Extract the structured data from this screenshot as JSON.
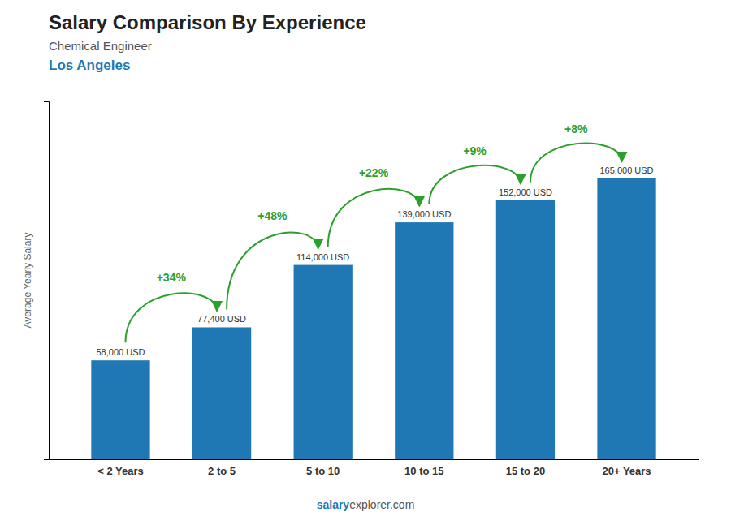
{
  "chart_data": {
    "type": "bar",
    "title": "Salary Comparison By Experience",
    "subtitle": "Chemical Engineer",
    "subtitle2": "Los Angeles",
    "ylabel": "Average Yearly Salary",
    "categories": [
      "< 2 Years",
      "2 to 5",
      "5 to 10",
      "10 to 15",
      "15 to 20",
      "20+ Years"
    ],
    "values": [
      58000,
      77400,
      114000,
      139000,
      152000,
      165000
    ],
    "value_labels": [
      "58,000 USD",
      "77,400 USD",
      "114,000 USD",
      "139,000 USD",
      "152,000 USD",
      "165,000 USD"
    ],
    "data_labels": true,
    "annotations": [
      "+34%",
      "+48%",
      "+22%",
      "+9%",
      "+8%"
    ],
    "source": [
      "salary",
      "explorer.com"
    ],
    "ylim": [
      0,
      210000
    ],
    "tick_labels": "x",
    "grid": false
  }
}
